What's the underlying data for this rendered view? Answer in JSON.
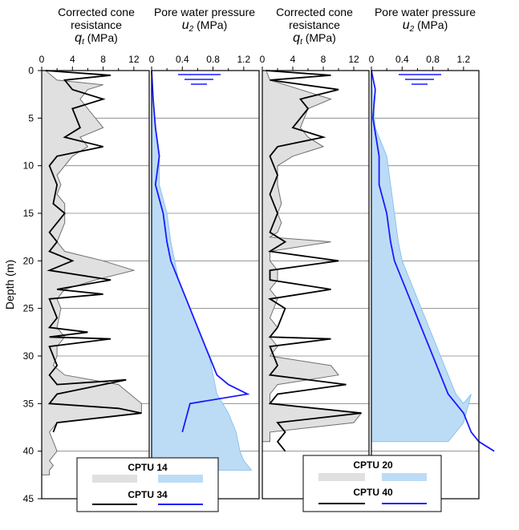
{
  "chart_data": [
    {
      "type": "line",
      "panel": "qt-left",
      "title_lines": [
        "Corrected cone",
        "resistance"
      ],
      "xlabel_sym": "q",
      "xlabel_sub": "t",
      "xlabel_unit": " (MPa)",
      "ylabel": "Depth (m)",
      "xlim": [
        0,
        14
      ],
      "ylim": [
        0,
        45
      ],
      "xticks": [
        "0",
        "4",
        "8",
        "12"
      ],
      "yticks": [
        "0",
        "5",
        "10",
        "15",
        "20",
        "25",
        "30",
        "35",
        "40",
        "45"
      ],
      "grid_y": true,
      "series": [
        {
          "name": "CPTU 14",
          "fill": true,
          "x": [
            0.5,
            2,
            8,
            6,
            5,
            6,
            8,
            5,
            6,
            4,
            3,
            2,
            2.5,
            2,
            3,
            3,
            2.5,
            2,
            3,
            8,
            12,
            7,
            3,
            2,
            2.5,
            2,
            3,
            2,
            2,
            1.5,
            3,
            10,
            13,
            13,
            2,
            1,
            1.5,
            2,
            1,
            1.5,
            1,
            1
          ],
          "y": [
            0,
            1,
            1.5,
            2,
            3,
            4,
            6,
            7,
            8,
            9,
            10,
            11,
            12,
            13,
            14,
            16,
            17,
            18,
            19,
            20,
            21,
            22,
            23,
            24,
            25,
            27,
            28,
            29,
            30,
            31,
            32,
            33,
            35,
            36,
            37,
            38,
            39,
            40,
            41,
            41.5,
            42,
            42.5
          ]
        },
        {
          "name": "CPTU 34",
          "fill": false,
          "x": [
            0.5,
            9,
            3,
            4,
            8,
            4,
            5,
            3,
            8,
            2,
            1,
            2,
            1.5,
            3,
            1,
            2,
            1,
            4,
            1,
            9,
            2,
            8,
            1,
            2,
            1,
            6,
            1,
            9,
            1,
            2,
            1,
            2,
            11,
            2,
            1,
            10,
            13,
            2,
            1.5
          ],
          "y": [
            0,
            0.5,
            1,
            2,
            3,
            4,
            6,
            7,
            8,
            9,
            10,
            12,
            14,
            15,
            17,
            18,
            19,
            20,
            21,
            22,
            23,
            23.5,
            24,
            26,
            27,
            27.5,
            28,
            28.2,
            29,
            31,
            32,
            33,
            32.5,
            34,
            35,
            35.5,
            36,
            37,
            38
          ]
        }
      ]
    },
    {
      "type": "line",
      "panel": "u2-left",
      "title_lines": [
        "Pore water pressure"
      ],
      "xlabel_sym": "u",
      "xlabel_sub": "2",
      "xlabel_unit": " (MPa)",
      "xlim": [
        0,
        1.4
      ],
      "ylim": [
        0,
        45
      ],
      "xticks": [
        "0",
        "0.4",
        "0.8",
        "1.2"
      ],
      "series": [
        {
          "name": "CPTU 14",
          "fill": true,
          "x": [
            0,
            0.02,
            0.05,
            0.1,
            0.1,
            0.2,
            0.25,
            0.3,
            0.35,
            0.45,
            0.55,
            0.65,
            0.75,
            0.8,
            0.85,
            1.0,
            1.1,
            1.15,
            1.2,
            1.3
          ],
          "y": [
            0,
            3,
            6,
            9,
            12,
            15,
            18,
            20,
            22,
            24,
            26,
            28,
            30,
            32,
            34,
            36,
            38,
            40,
            41,
            42
          ]
        },
        {
          "name": "CPTU 34",
          "fill": false,
          "x": [
            0,
            0.02,
            0.05,
            0.1,
            0.05,
            0.15,
            0.2,
            0.25,
            0.35,
            0.45,
            0.55,
            0.65,
            0.75,
            0.85,
            1.0,
            1.25,
            0.5,
            0.4
          ],
          "y": [
            0,
            3,
            6,
            9,
            12,
            15,
            18,
            20,
            22,
            24,
            26,
            28,
            30,
            32,
            33,
            34,
            35,
            38
          ]
        }
      ]
    },
    {
      "type": "line",
      "panel": "qt-right",
      "title_lines": [
        "Corrected cone",
        "resistance"
      ],
      "xlabel_sym": "q",
      "xlabel_sub": "t",
      "xlabel_unit": " (MPa)",
      "xlim": [
        0,
        14
      ],
      "ylim": [
        0,
        45
      ],
      "xticks": [
        "0",
        "4",
        "8",
        "12"
      ],
      "series": [
        {
          "name": "CPTU 20",
          "fill": true,
          "x": [
            0.5,
            1,
            5,
            9,
            6,
            5,
            6,
            8,
            4,
            2,
            2,
            2.5,
            2,
            2.5,
            2,
            1,
            9,
            1,
            1,
            2,
            2,
            1,
            2,
            1,
            2,
            1,
            2,
            1,
            9,
            10,
            2,
            1,
            1,
            13,
            12,
            1,
            1
          ],
          "y": [
            0,
            1,
            2,
            3,
            4,
            6,
            7,
            8,
            9,
            10,
            12,
            14,
            15,
            16,
            17,
            17.5,
            18,
            19,
            20,
            21,
            22,
            23,
            24,
            26,
            27,
            28,
            29,
            30,
            31,
            32,
            33,
            34,
            35,
            36,
            37,
            38,
            39
          ]
        },
        {
          "name": "CPTU 40",
          "fill": false,
          "x": [
            0.5,
            9,
            1,
            10,
            5,
            6,
            4,
            8,
            2,
            1,
            2,
            1,
            2,
            1,
            3,
            1,
            10,
            1,
            1,
            9,
            1,
            3,
            2,
            1,
            9,
            1,
            2,
            1,
            11,
            2,
            1,
            13,
            2,
            3,
            2,
            3
          ],
          "y": [
            0,
            0.5,
            1,
            2,
            3,
            4,
            6,
            7,
            8,
            9,
            11,
            13,
            15,
            17,
            18,
            19,
            20,
            21,
            22,
            23,
            24,
            25,
            27,
            28,
            28.2,
            29,
            31,
            32,
            33,
            34,
            35,
            36,
            37,
            38,
            39,
            40
          ]
        }
      ]
    },
    {
      "type": "line",
      "panel": "u2-right",
      "title_lines": [
        "Pore water pressure"
      ],
      "xlabel_sym": "u",
      "xlabel_sub": "2",
      "xlabel_unit": " (MPa)",
      "xlim": [
        0,
        1.4
      ],
      "ylim": [
        0,
        45
      ],
      "xticks": [
        "0",
        "0.4",
        "0.8",
        "1.2"
      ],
      "series": [
        {
          "name": "CPTU 20",
          "fill": true,
          "x": [
            0,
            0.02,
            0.05,
            0.2,
            0.25,
            0.3,
            0.35,
            0.4,
            0.5,
            0.6,
            0.7,
            0.8,
            0.9,
            1.0,
            1.1,
            1.2,
            1.3,
            1.2,
            1.0
          ],
          "y": [
            0,
            3,
            6,
            9,
            12,
            15,
            18,
            20,
            22,
            24,
            26,
            28,
            30,
            32,
            34,
            35,
            34,
            37,
            39
          ]
        },
        {
          "name": "CPTU 40",
          "fill": false,
          "x": [
            0,
            0.05,
            0.02,
            0.1,
            0.1,
            0.2,
            0.25,
            0.3,
            0.4,
            0.5,
            0.6,
            0.7,
            0.8,
            0.9,
            1.0,
            1.1,
            1.2,
            1.3,
            1.4,
            1.6
          ],
          "y": [
            0,
            2,
            5,
            9,
            12,
            15,
            18,
            20,
            22,
            24,
            26,
            28,
            30,
            32,
            34,
            35,
            36,
            38,
            39,
            40
          ]
        }
      ]
    }
  ],
  "legend_left": {
    "a": "CPTU 14",
    "b": "CPTU 34"
  },
  "legend_right": {
    "a": "CPTU 20",
    "b": "CPTU 40"
  },
  "colors": {
    "fill_q": "#e0e0e0",
    "fill_u": "#bcdcf6",
    "line_q": "#000000",
    "line_u": "#1a1aff",
    "grid": "#808080"
  }
}
